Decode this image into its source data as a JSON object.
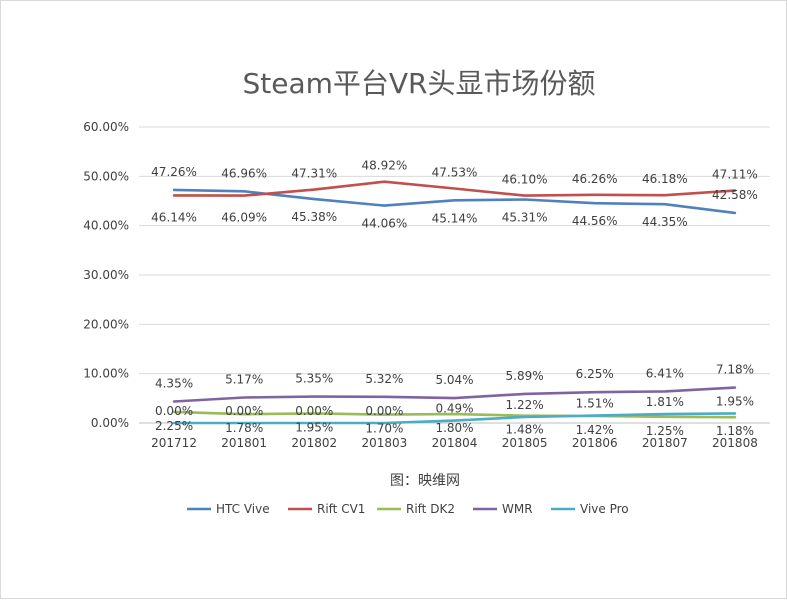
{
  "chart_data": {
    "type": "line",
    "title": "Steam平台VR头显市场份额",
    "caption": "图：映维网",
    "categories": [
      "201712",
      "201801",
      "201802",
      "201803",
      "201804",
      "201805",
      "201806",
      "201807",
      "201808"
    ],
    "y_ticks": [
      "0.00%",
      "10.00%",
      "20.00%",
      "30.00%",
      "40.00%",
      "50.00%",
      "60.00%"
    ],
    "ylim": [
      0,
      60
    ],
    "grid": true,
    "legend_position": "bottom",
    "series": [
      {
        "name": "HTC Vive",
        "color": "#4F81BD",
        "values": [
          47.26,
          46.96,
          45.38,
          44.06,
          45.14,
          45.31,
          44.56,
          44.35,
          42.58
        ],
        "labels": [
          "47.26%",
          "46.96%",
          "45.38%",
          "44.06%",
          "45.14%",
          "45.31%",
          "44.56%",
          "44.35%",
          "42.58%"
        ]
      },
      {
        "name": "Rift CV1",
        "color": "#C0504D",
        "values": [
          46.14,
          46.09,
          47.31,
          48.92,
          47.53,
          46.1,
          46.26,
          46.18,
          47.11
        ],
        "labels": [
          "46.14%",
          "46.09%",
          "47.31%",
          "48.92%",
          "47.53%",
          "46.10%",
          "46.26%",
          "46.18%",
          "47.11%"
        ]
      },
      {
        "name": "Rift DK2",
        "color": "#9BBB59",
        "values": [
          2.25,
          1.78,
          1.95,
          1.7,
          1.8,
          1.48,
          1.42,
          1.25,
          1.18
        ],
        "labels": [
          "2.25%",
          "1.78%",
          "1.95%",
          "1.70%",
          "1.80%",
          "1.48%",
          "1.42%",
          "1.25%",
          "1.18%"
        ]
      },
      {
        "name": "WMR",
        "color": "#8064A2",
        "values": [
          4.35,
          5.17,
          5.35,
          5.32,
          5.04,
          5.89,
          6.25,
          6.41,
          7.18
        ],
        "labels": [
          "4.35%",
          "5.17%",
          "5.35%",
          "5.32%",
          "5.04%",
          "5.89%",
          "6.25%",
          "6.41%",
          "7.18%"
        ]
      },
      {
        "name": "Vive Pro",
        "color": "#4BACC6",
        "values": [
          0.0,
          0.0,
          0.0,
          0.0,
          0.49,
          1.22,
          1.51,
          1.81,
          1.95
        ],
        "labels": [
          "0.00%",
          "0.00%",
          "0.00%",
          "0.00%",
          "0.49%",
          "1.22%",
          "1.51%",
          "1.81%",
          "1.95%"
        ]
      }
    ]
  }
}
